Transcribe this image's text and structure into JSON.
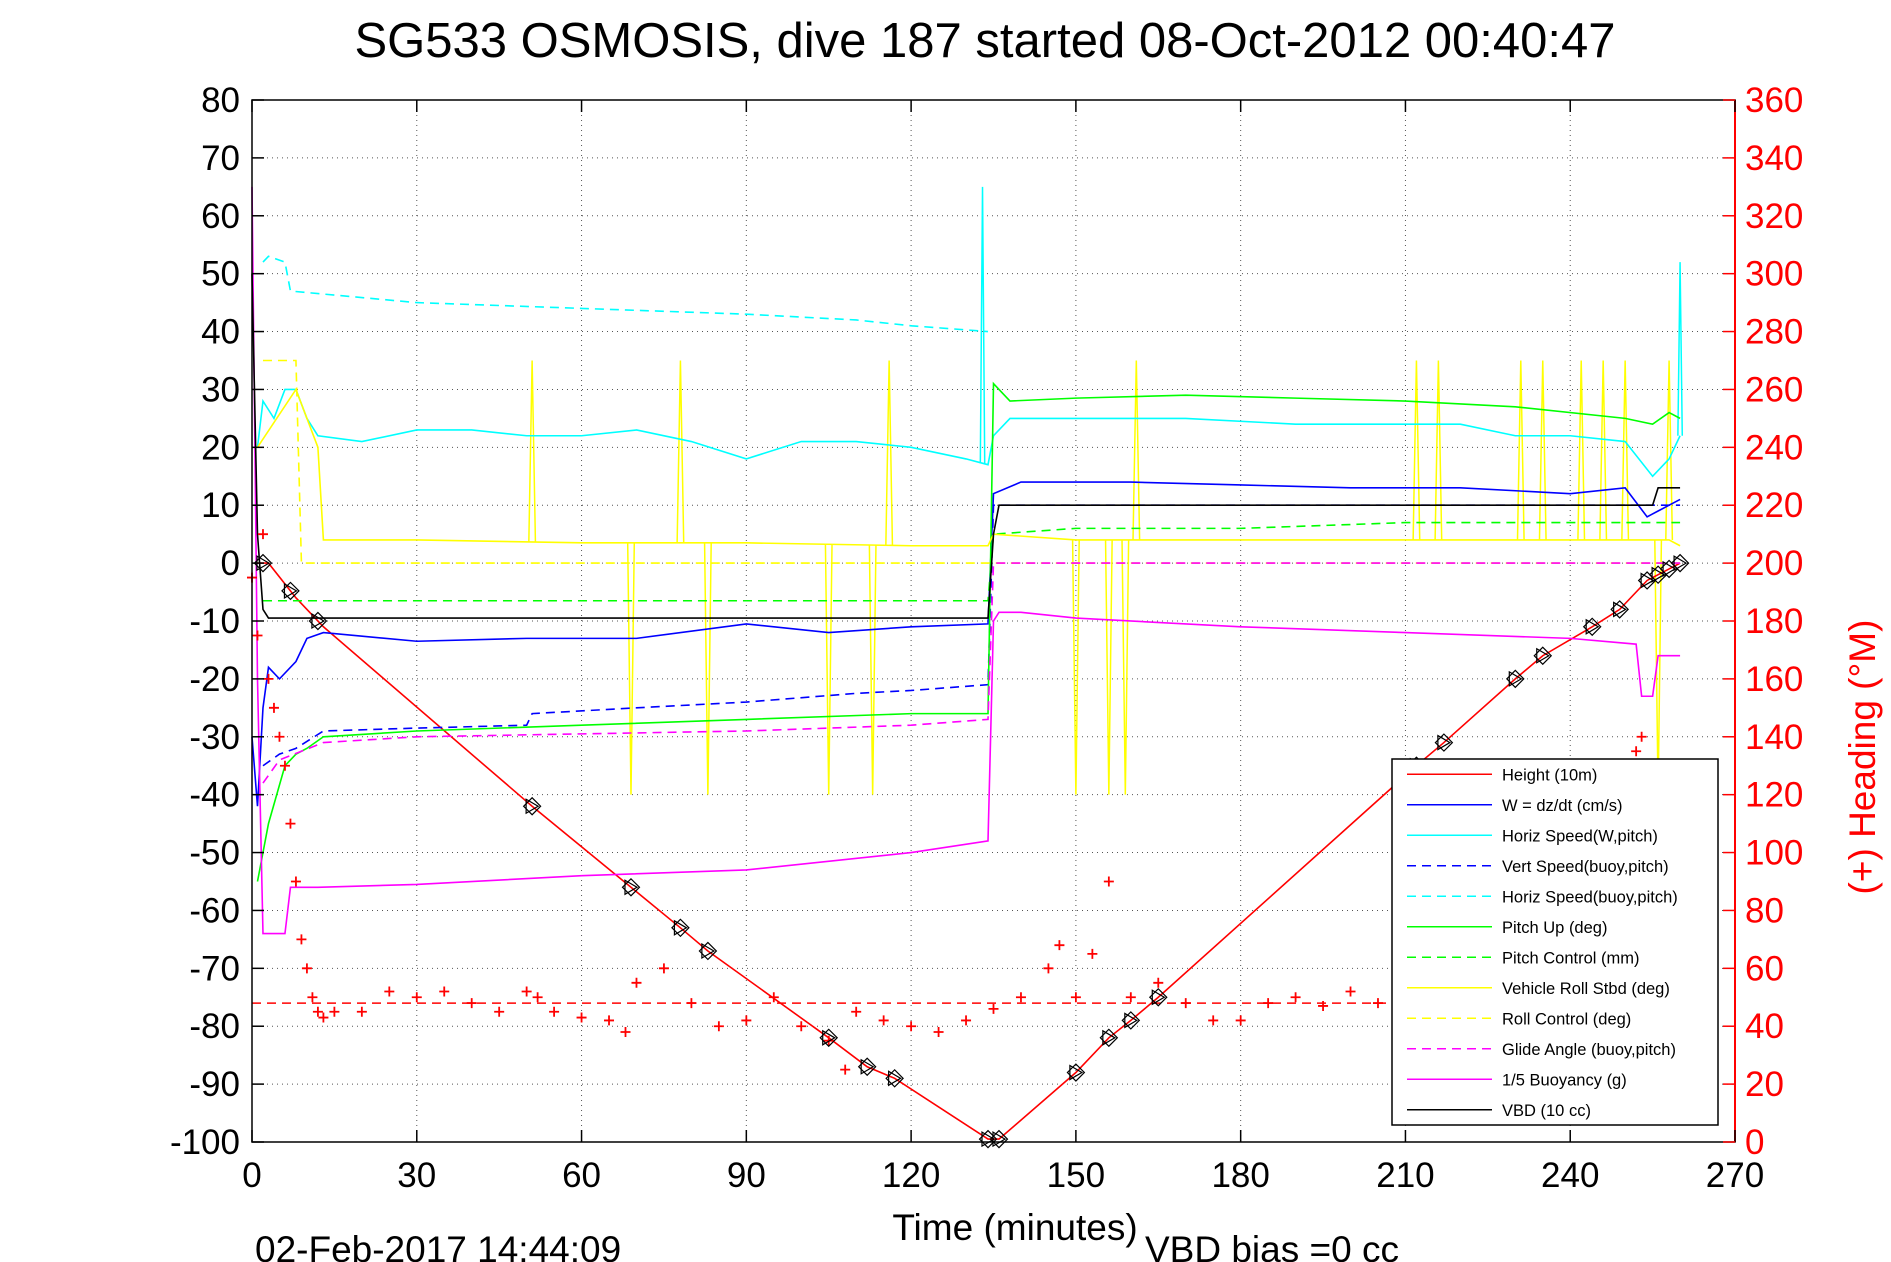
{
  "chart_data": {
    "type": "line",
    "title": "SG533 OSMOSIS, dive 187 started 08-Oct-2012 00:40:47",
    "xlabel": "Time (minutes)",
    "ylabel": "",
    "y2label": "(+) Heading (°M)",
    "footer_left": "02-Feb-2017 14:44:09",
    "footer_right": "VBD bias =0 cc",
    "xlim": [
      0,
      270
    ],
    "ylim": [
      -100,
      80
    ],
    "y2lim": [
      0,
      360
    ],
    "xticks": [
      0,
      30,
      60,
      90,
      120,
      150,
      180,
      210,
      240,
      270
    ],
    "yticks": [
      -100,
      -90,
      -80,
      -70,
      -60,
      -50,
      -40,
      -30,
      -20,
      -10,
      0,
      10,
      20,
      30,
      40,
      50,
      60,
      70,
      80
    ],
    "y2ticks": [
      0,
      20,
      40,
      60,
      80,
      100,
      120,
      140,
      160,
      180,
      200,
      220,
      240,
      260,
      280,
      300,
      320,
      340,
      360
    ],
    "grid": true,
    "legend_position": "bottom-right",
    "axis_colors": {
      "left": "#000000",
      "right": "#ff0000"
    },
    "series": [
      {
        "name": "Height (10m)",
        "color": "#ff0000",
        "dash": "solid",
        "x": [
          1,
          3,
          8,
          13,
          51,
          69,
          78,
          83,
          105,
          112,
          117,
          134,
          136,
          150,
          156,
          160,
          165,
          212,
          217,
          230,
          235,
          244,
          249,
          254,
          256,
          258,
          260
        ],
        "y": [
          0,
          0,
          -6,
          -11,
          -42,
          -56,
          -63,
          -67,
          -82,
          -87,
          -89,
          -99.5,
          -99.5,
          -88,
          -82,
          -79,
          -75,
          -35,
          -31,
          -20,
          -16,
          -11,
          -8,
          -3,
          -2,
          -1,
          0
        ]
      },
      {
        "name": "W = dz/dt (cm/s)",
        "color": "#0000ff",
        "dash": "solid",
        "x": [
          0,
          1,
          2,
          3,
          5,
          8,
          10,
          13,
          30,
          50,
          70,
          90,
          105,
          120,
          134,
          135,
          140,
          160,
          180,
          200,
          210,
          220,
          240,
          250,
          254,
          256,
          258,
          260
        ],
        "y": [
          -30,
          -42,
          -25,
          -18,
          -20,
          -17,
          -13,
          -12,
          -13.5,
          -13,
          -13,
          -10.5,
          -12,
          -11,
          -10.5,
          12,
          14,
          14,
          13.5,
          13,
          13,
          13,
          12,
          13,
          8,
          9,
          10,
          11
        ]
      },
      {
        "name": "Horiz Speed(W,pitch)",
        "color": "#00ffff",
        "dash": "solid",
        "x": [
          1,
          2,
          4,
          6,
          8,
          10,
          12,
          20,
          30,
          40,
          50,
          60,
          70,
          80,
          90,
          100,
          110,
          120,
          130,
          134,
          135,
          138,
          150,
          170,
          190,
          210,
          220,
          230,
          240,
          250,
          255,
          258,
          260
        ],
        "y": [
          20,
          28,
          25,
          30,
          30,
          25,
          22,
          21,
          23,
          23,
          22,
          22,
          23,
          21,
          18,
          21,
          21,
          20,
          18,
          17,
          22,
          25,
          25,
          25,
          24,
          24,
          24,
          22,
          22,
          21,
          15,
          18,
          22
        ]
      },
      {
        "name": "Vert Speed(buoy,pitch)",
        "color": "#0000ff",
        "dash": "dashed",
        "x": [
          2,
          5,
          8,
          13,
          30,
          50,
          51,
          70,
          90,
          110,
          120,
          134,
          135,
          140,
          160,
          180,
          200,
          220,
          240,
          255,
          258,
          260
        ],
        "y": [
          -35,
          -33,
          -32,
          -29,
          -28.5,
          -28,
          -26,
          -25,
          -24,
          -22.5,
          -22,
          -21,
          10,
          10,
          10,
          10,
          10,
          10,
          10,
          10,
          10,
          10
        ]
      },
      {
        "name": "Horiz Speed(buoy,pitch)",
        "color": "#00ffff",
        "dash": "dashed",
        "x": [
          2,
          3,
          6,
          7,
          30,
          60,
          90,
          110,
          120,
          134
        ],
        "y": [
          52,
          53,
          52,
          47,
          45,
          44,
          43,
          42,
          41,
          40
        ]
      },
      {
        "name": "Pitch Up (deg)",
        "color": "#00ff00",
        "dash": "solid",
        "x": [
          1,
          3,
          6,
          8,
          10,
          13,
          30,
          60,
          90,
          120,
          134,
          135,
          138,
          150,
          170,
          190,
          210,
          230,
          250,
          255,
          258,
          260
        ],
        "y": [
          -55,
          -45,
          -35,
          -33,
          -32,
          -30,
          -29,
          -28,
          -27,
          -26,
          -26,
          31,
          28,
          28.5,
          29,
          28.5,
          28,
          27,
          25,
          24,
          26,
          25
        ]
      },
      {
        "name": "Pitch Control (mm)",
        "color": "#00ff00",
        "dash": "dashed",
        "x": [
          2,
          13,
          30,
          60,
          90,
          120,
          134,
          135,
          150,
          180,
          210,
          240,
          260
        ],
        "y": [
          -6.5,
          -6.5,
          -6.5,
          -6.5,
          -6.5,
          -6.5,
          -6.5,
          5,
          6,
          6,
          7,
          7,
          7
        ]
      },
      {
        "name": "Vehicle Roll Stbd (deg)",
        "color": "#ffff00",
        "dash": "solid",
        "x": [
          1,
          8,
          12,
          13,
          30,
          60,
          90,
          120,
          134,
          135,
          150,
          180,
          210,
          240,
          258,
          260
        ],
        "y": [
          20,
          30,
          20,
          4,
          4,
          3.5,
          3.5,
          3,
          3,
          5,
          4,
          4,
          4,
          4,
          4,
          3
        ]
      },
      {
        "name": "Roll Control (deg)",
        "color": "#ffff00",
        "dash": "dashed",
        "x": [
          2,
          8,
          9,
          13,
          60,
          90,
          120,
          134,
          135,
          150,
          180,
          210,
          240,
          260
        ],
        "y": [
          35,
          35,
          0,
          0,
          0,
          0,
          0,
          0,
          0,
          0,
          0,
          0,
          0,
          0
        ]
      },
      {
        "name": "Glide Angle (buoy,pitch)",
        "color": "#ff00ff",
        "dash": "dashed",
        "x": [
          2,
          5,
          13,
          30,
          60,
          90,
          120,
          134,
          135,
          260
        ],
        "y": [
          -38,
          -34,
          -31,
          -30,
          -29.5,
          -29,
          -28,
          -27,
          0,
          0
        ]
      },
      {
        "name": "1/5 Buoyancy (g)",
        "color": "#ff00ff",
        "dash": "solid",
        "x": [
          0,
          1,
          2,
          6,
          7,
          12,
          30,
          60,
          90,
          120,
          134,
          135,
          136,
          140,
          150,
          180,
          210,
          240,
          252,
          253,
          255,
          256,
          260
        ],
        "y": [
          65,
          -20,
          -64,
          -64,
          -56,
          -56,
          -55.5,
          -54,
          -53,
          -50,
          -48,
          -10,
          -8.5,
          -8.5,
          -9.5,
          -11,
          -12,
          -13,
          -14,
          -23,
          -23,
          -16,
          -16
        ]
      },
      {
        "name": "VBD (10 cc)",
        "color": "#000000",
        "dash": "solid",
        "x": [
          0,
          1,
          2,
          3,
          4,
          134,
          135,
          136,
          255,
          256,
          260
        ],
        "y": [
          50,
          5,
          -8,
          -9.5,
          -9.5,
          -9.5,
          5,
          10,
          10,
          13,
          13
        ]
      }
    ],
    "heading_series": {
      "name": "Heading",
      "color": "#ff0000",
      "marker": "+",
      "axis": "right",
      "x": [
        0,
        1,
        2,
        3,
        4,
        5,
        6,
        7,
        8,
        9,
        10,
        11,
        12,
        13,
        15,
        20,
        25,
        30,
        35,
        40,
        45,
        50,
        52,
        55,
        60,
        65,
        68,
        70,
        75,
        80,
        85,
        90,
        95,
        100,
        105,
        108,
        110,
        115,
        120,
        125,
        130,
        135,
        140,
        145,
        147,
        150,
        153,
        156,
        160,
        165,
        170,
        175,
        180,
        185,
        190,
        195,
        200,
        205,
        210,
        252,
        253
      ],
      "y": [
        195,
        175,
        210,
        160,
        150,
        140,
        130,
        110,
        90,
        70,
        60,
        50,
        45,
        43,
        45,
        45,
        52,
        50,
        52,
        48,
        45,
        52,
        50,
        45,
        43,
        42,
        38,
        55,
        60,
        48,
        40,
        42,
        50,
        40,
        35,
        25,
        45,
        42,
        40,
        38,
        42,
        46,
        50,
        60,
        68,
        50,
        65,
        90,
        50,
        55,
        48,
        42,
        42,
        48,
        50,
        47,
        52,
        48,
        43,
        135,
        140
      ]
    },
    "reference_lines": [
      {
        "name": "Heading target",
        "color": "#ff0000",
        "dash": "dashed",
        "axis": "right",
        "value": 48,
        "x": [
          0,
          260
        ]
      }
    ],
    "marker_points": {
      "series": "Height (10m)",
      "x": [
        2,
        7,
        12,
        51,
        69,
        78,
        83,
        105,
        112,
        117,
        134,
        136,
        150,
        156,
        160,
        165,
        212,
        217,
        230,
        235,
        244,
        249,
        254,
        256,
        258,
        260
      ]
    },
    "spikes": {
      "roll": [
        {
          "x": 51,
          "to": 35
        },
        {
          "x": 69,
          "to": -40
        },
        {
          "x": 78,
          "to": 35
        },
        {
          "x": 83,
          "to": -40
        },
        {
          "x": 105,
          "to": -40
        },
        {
          "x": 113,
          "to": -40
        },
        {
          "x": 116,
          "to": 35
        },
        {
          "x": 150,
          "to": -40
        },
        {
          "x": 156,
          "to": -40
        },
        {
          "x": 159,
          "to": -40
        },
        {
          "x": 161,
          "to": 35
        },
        {
          "x": 212,
          "to": 35
        },
        {
          "x": 216,
          "to": 35
        },
        {
          "x": 231,
          "to": 35
        },
        {
          "x": 235,
          "to": 35
        },
        {
          "x": 242,
          "to": 35
        },
        {
          "x": 246,
          "to": 35
        },
        {
          "x": 250,
          "to": 35
        },
        {
          "x": 256,
          "to": -40
        },
        {
          "x": 258,
          "to": 35
        }
      ],
      "hspeed": [
        {
          "x": 133,
          "to": 65
        },
        {
          "x": 260,
          "to": 52
        }
      ]
    }
  }
}
